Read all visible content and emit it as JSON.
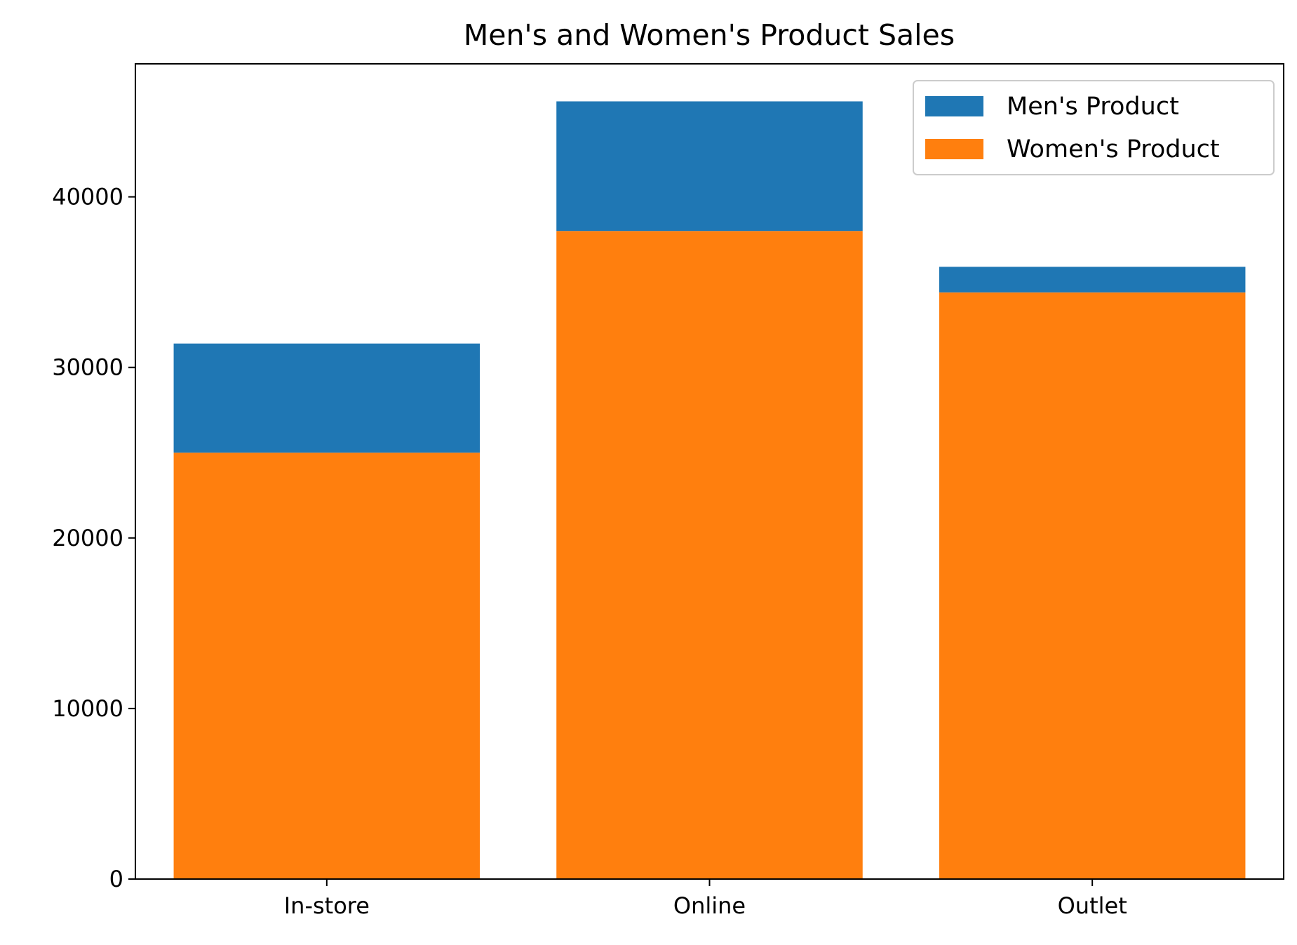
{
  "chart_data": {
    "type": "bar",
    "stacked": true,
    "title": "Men's and Women's Product Sales",
    "xlabel": "",
    "ylabel": "",
    "categories": [
      "In-store",
      "Online",
      "Outlet"
    ],
    "series": [
      {
        "name": "Women's Product",
        "values": [
          25000,
          38000,
          34400
        ],
        "color": "#ff7f0e"
      },
      {
        "name": "Men's Product",
        "values": [
          6400,
          7600,
          1500
        ],
        "color": "#1f77b4"
      }
    ],
    "ylim": [
      0,
      47800
    ],
    "yticks": [
      0,
      10000,
      20000,
      30000,
      40000
    ],
    "ytick_labels": [
      "0",
      "10000",
      "20000",
      "30000",
      "40000"
    ],
    "legend": {
      "placement": "top-right",
      "entries": [
        {
          "label": "Men's Product",
          "color": "#1f77b4"
        },
        {
          "label": "Women's Product",
          "color": "#ff7f0e"
        }
      ]
    },
    "grid": false
  }
}
